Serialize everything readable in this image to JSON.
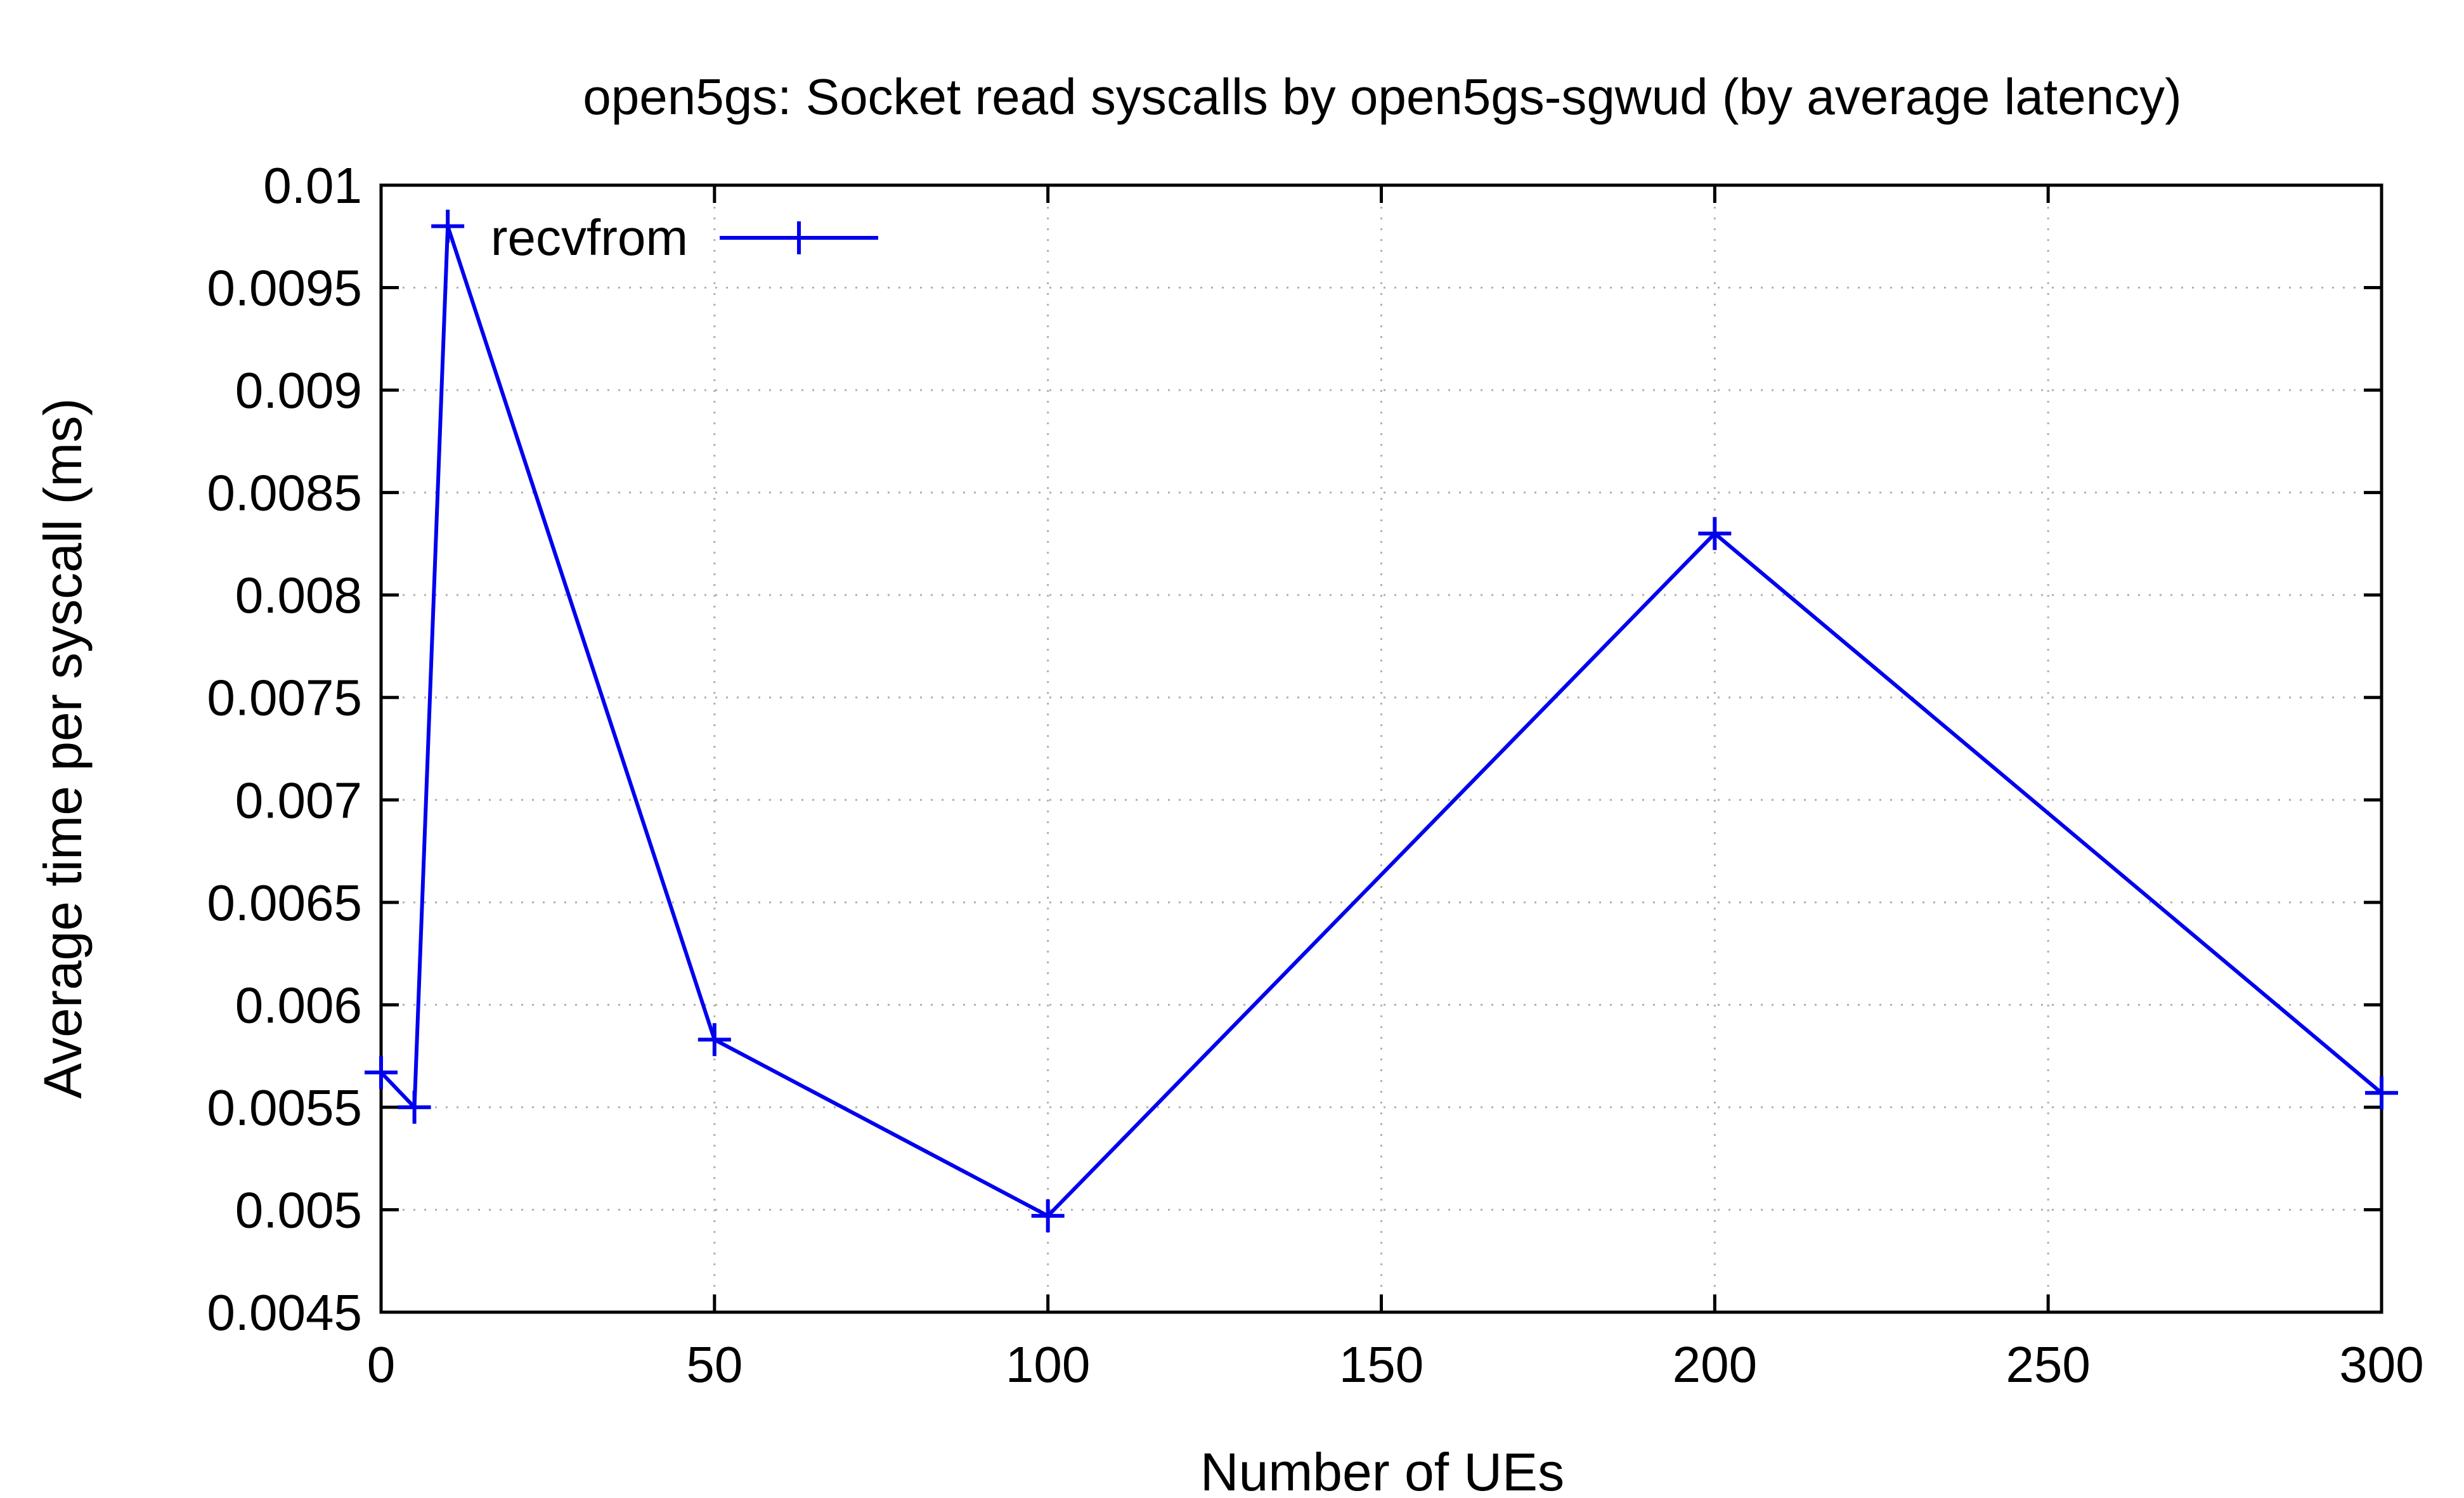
{
  "chart_data": {
    "type": "line",
    "title": "open5gs: Socket read syscalls by open5gs-sgwud (by average latency)",
    "xlabel": "Number of UEs",
    "ylabel": "Average time per syscall (ms)",
    "xlim": [
      0,
      300
    ],
    "ylim": [
      0.0045,
      0.01
    ],
    "xticks": [
      0,
      50,
      100,
      150,
      200,
      250,
      300
    ],
    "xtick_labels": [
      "0",
      "50",
      "100",
      "150",
      "200",
      "250",
      "300"
    ],
    "yticks": [
      0.0045,
      0.005,
      0.0055,
      0.006,
      0.0065,
      0.007,
      0.0075,
      0.008,
      0.0085,
      0.009,
      0.0095,
      0.01
    ],
    "ytick_labels": [
      "0.0045",
      "0.005",
      "0.0055",
      "0.006",
      "0.0065",
      "0.007",
      "0.0075",
      "0.008",
      "0.0085",
      "0.009",
      "0.0095",
      "0.01"
    ],
    "grid": true,
    "legend_position": "top-left",
    "series": [
      {
        "name": "recvfrom",
        "color": "#0000ee",
        "marker": "plus",
        "x": [
          0,
          5,
          10,
          50,
          100,
          200,
          300
        ],
        "y": [
          0.00567,
          0.0055,
          0.0098,
          0.00583,
          0.00497,
          0.0083,
          0.00557
        ]
      }
    ]
  }
}
